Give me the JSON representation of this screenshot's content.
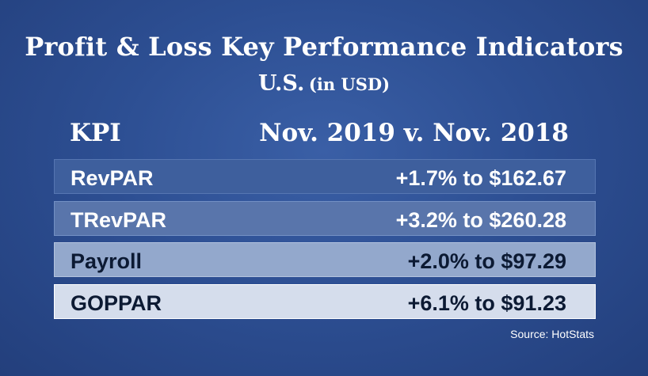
{
  "chart_data": {
    "type": "table",
    "title": "Profit & Loss Key Performance Indicators",
    "subtitle": "U.S.",
    "unit_note": "(in USD)",
    "columns": [
      "KPI",
      "Nov. 2019 v. Nov. 2018"
    ],
    "rows": [
      {
        "kpi": "RevPAR",
        "change": "+1.7% to $162.67",
        "pct": 1.7,
        "value": 162.67
      },
      {
        "kpi": "TRevPAR",
        "change": "+3.2% to $260.28",
        "pct": 3.2,
        "value": 260.28
      },
      {
        "kpi": "Payroll",
        "change": "+2.0% to $97.29",
        "pct": 2.0,
        "value": 97.29
      },
      {
        "kpi": "GOPPAR",
        "change": "+6.1% to $91.23",
        "pct": 6.1,
        "value": 91.23
      }
    ],
    "source": "Source: HotStats"
  },
  "colors": {
    "background": "#2d4f93",
    "row_1": "#3e5f9d",
    "row_2": "#5975ab",
    "row_3": "#93a8cc",
    "row_4": "#d5ddec"
  }
}
